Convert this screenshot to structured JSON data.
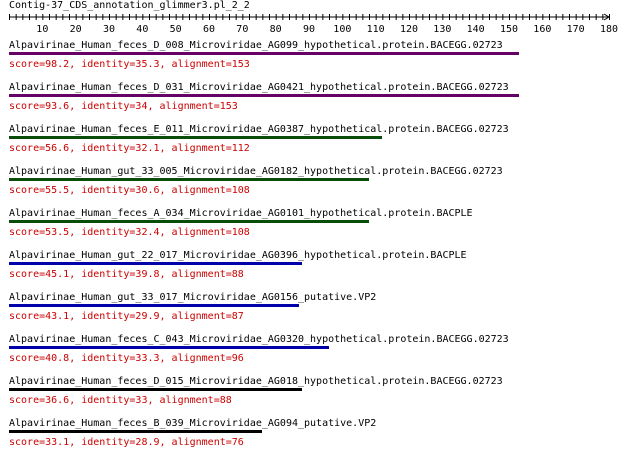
{
  "title": "Contig-37_CDS_annotation_glimmer3.pl_2_2",
  "ruler": {
    "min": 0,
    "max": 180,
    "ticks": [
      10,
      20,
      30,
      40,
      50,
      60,
      70,
      80,
      90,
      100,
      110,
      120,
      130,
      140,
      150,
      160,
      170,
      180
    ]
  },
  "hits": [
    {
      "name": "Alpavirinae_Human_feces_D_008_Microviridae_AG099_hypothetical.protein.BACEGG.02723",
      "stats": "score=98.2, identity=35.3, alignment=153",
      "bar_color": "#660066",
      "alignment": 153
    },
    {
      "name": "Alpavirinae_Human_feces_D_031_Microviridae_AG0421_hypothetical.protein.BACEGG.02723",
      "stats": "score=93.6, identity=34, alignment=153",
      "bar_color": "#660066",
      "alignment": 153
    },
    {
      "name": "Alpavirinae_Human_feces_E_011_Microviridae_AG0387_hypothetical.protein.BACEGG.02723",
      "stats": "score=56.6, identity=32.1, alignment=112",
      "bar_color": "#0a4d0a",
      "alignment": 112
    },
    {
      "name": "Alpavirinae_Human_gut_33_005_Microviridae_AG0182_hypothetical.protein.BACEGG.02723",
      "stats": "score=55.5, identity=30.6, alignment=108",
      "bar_color": "#0a4d0a",
      "alignment": 108
    },
    {
      "name": "Alpavirinae_Human_feces_A_034_Microviridae_AG0101_hypothetical.protein.BACPLE",
      "stats": "score=53.5, identity=32.4, alignment=108",
      "bar_color": "#0a4d0a",
      "alignment": 108
    },
    {
      "name": "Alpavirinae_Human_gut_22_017_Microviridae_AG0396_hypothetical.protein.BACPLE",
      "stats": "score=45.1, identity=39.8, alignment=88",
      "bar_color": "#0000aa",
      "alignment": 88
    },
    {
      "name": "Alpavirinae_Human_gut_33_017_Microviridae_AG0156_putative.VP2",
      "stats": "score=43.1, identity=29.9, alignment=87",
      "bar_color": "#0000aa",
      "alignment": 87
    },
    {
      "name": "Alpavirinae_Human_feces_C_043_Microviridae_AG0320_hypothetical.protein.BACEGG.02723",
      "stats": "score=40.8, identity=33.3, alignment=96",
      "bar_color": "#0000aa",
      "alignment": 96
    },
    {
      "name": "Alpavirinae_Human_feces_D_015_Microviridae_AG018_hypothetical.protein.BACEGG.02723",
      "stats": "score=36.6, identity=33, alignment=88",
      "bar_color": "#000000",
      "alignment": 88
    },
    {
      "name": "Alpavirinae_Human_feces_B_039_Microviridae_AG094_putative.VP2",
      "stats": "score=33.1, identity=28.9, alignment=76",
      "bar_color": "#000000",
      "alignment": 76
    }
  ]
}
